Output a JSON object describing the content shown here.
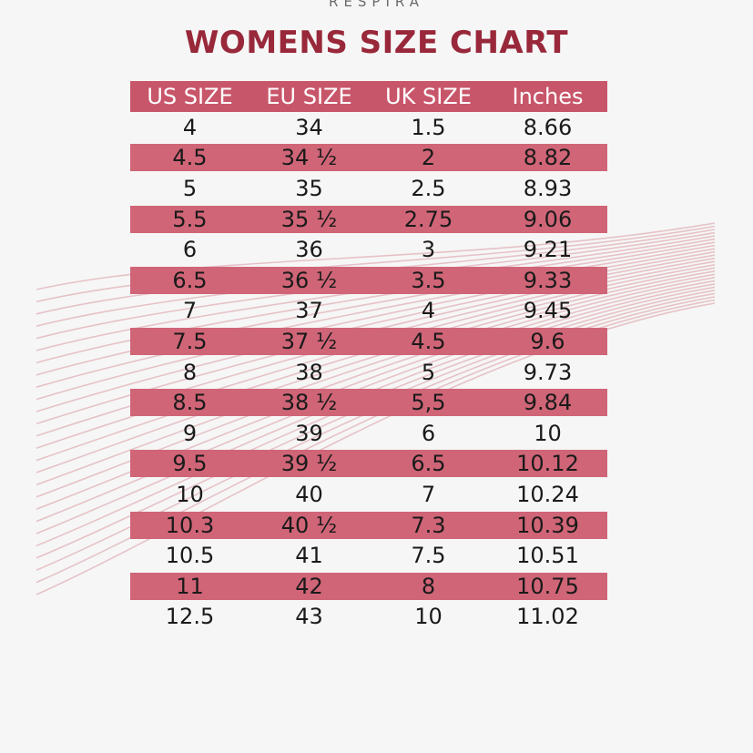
{
  "brand": "RESPIRA",
  "title": "WOMENS SIZE CHART",
  "colors": {
    "title": "#98283a",
    "header_bg": "#c8566a",
    "shaded_row_bg": "#d06577",
    "background": "#f6f6f6",
    "wave_lines": "#e3b8be"
  },
  "table": {
    "headers": [
      "US SIZE",
      "EU SIZE",
      "UK SIZE",
      "Inches"
    ],
    "rows": [
      [
        "4",
        "34",
        "1.5",
        "8.66"
      ],
      [
        "4.5",
        "34 ½",
        "2",
        "8.82"
      ],
      [
        "5",
        "35",
        "2.5",
        "8.93"
      ],
      [
        "5.5",
        "35 ½",
        "2.75",
        "9.06"
      ],
      [
        "6",
        "36",
        "3",
        "9.21"
      ],
      [
        "6.5",
        "36 ½",
        "3.5",
        "9.33"
      ],
      [
        "7",
        "37",
        "4",
        "9.45"
      ],
      [
        "7.5",
        "37 ½",
        "4.5",
        "9.6"
      ],
      [
        "8",
        "38",
        "5",
        "9.73"
      ],
      [
        "8.5",
        "38 ½",
        "5,5",
        "9.84"
      ],
      [
        "9",
        "39",
        "6",
        "10"
      ],
      [
        "9.5",
        "39 ½",
        "6.5",
        "10.12"
      ],
      [
        "10",
        "40",
        "7",
        "10.24"
      ],
      [
        "10.3",
        "40 ½",
        "7.3",
        "10.39"
      ],
      [
        "10.5",
        "41",
        "7.5",
        "10.51"
      ],
      [
        "11",
        "42",
        "8",
        "10.75"
      ],
      [
        "12.5",
        "43",
        "10",
        "11.02"
      ]
    ]
  }
}
